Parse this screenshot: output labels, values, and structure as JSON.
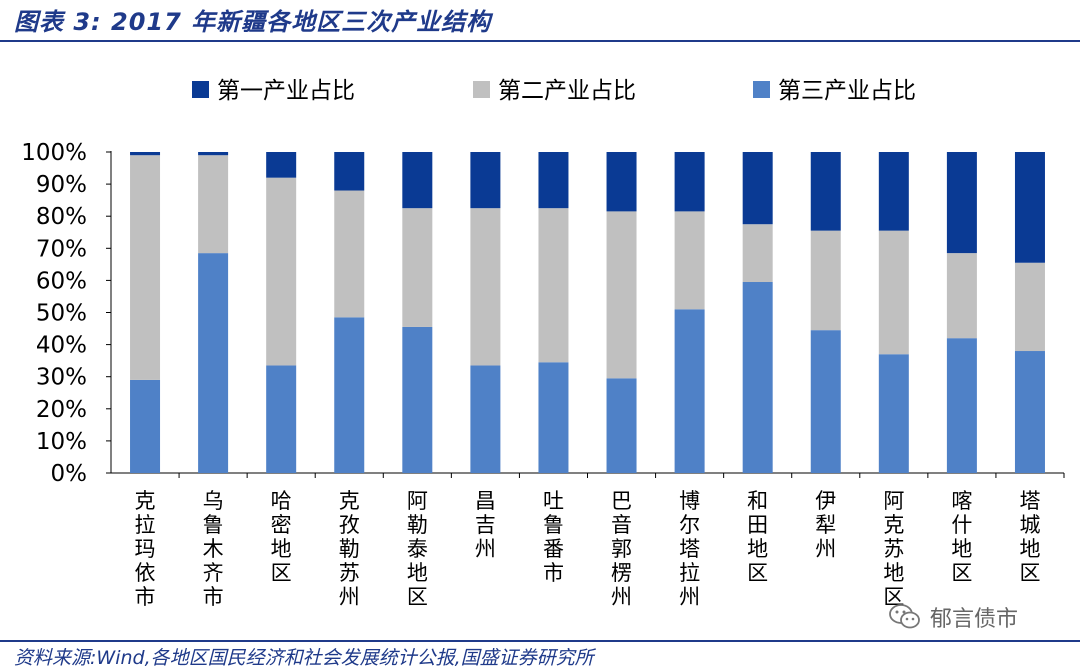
{
  "title": "图表 3:  2017 年新疆各地区三次产业结构",
  "source": "资料来源:Wind,各地区国民经济和社会发展统计公报,国盛证券研究所",
  "watermark": {
    "text": "郁言债市",
    "icon": "wechat-icon"
  },
  "colors": {
    "first": "#0a3a94",
    "second": "#c0c0c0",
    "third": "#4f81c7",
    "title": "#1f3a8a"
  },
  "chart_data": {
    "type": "bar",
    "stacked": true,
    "title": "2017 年新疆各地区三次产业结构",
    "categories": [
      "克拉玛依市",
      "乌鲁木齐市",
      "哈密地区",
      "克孜勒苏州",
      "阿勒泰地区",
      "昌吉州",
      "吐鲁番市",
      "巴音郭楞州",
      "博尔塔拉州",
      "和田地区",
      "伊犁州",
      "阿克苏地区",
      "喀什地区",
      "塔城地区"
    ],
    "series": [
      {
        "name": "第三产业占比",
        "values": [
          29,
          68.5,
          33.5,
          48.5,
          45.5,
          33.5,
          34.5,
          29.5,
          51,
          59.5,
          44.5,
          37,
          42,
          38
        ]
      },
      {
        "name": "第二产业占比",
        "values": [
          70,
          30.5,
          58.5,
          39.5,
          37,
          49,
          48,
          52,
          30.5,
          18,
          31,
          38.5,
          26.5,
          27.5
        ]
      },
      {
        "name": "第一产业占比",
        "values": [
          1,
          1,
          8,
          12,
          17.5,
          17.5,
          17.5,
          18.5,
          18.5,
          22.5,
          24.5,
          24.5,
          31.5,
          34.5
        ]
      }
    ],
    "legend": [
      "第一产业占比",
      "第二产业占比",
      "第三产业占比"
    ],
    "yticks": [
      "0%",
      "10%",
      "20%",
      "30%",
      "40%",
      "50%",
      "60%",
      "70%",
      "80%",
      "90%",
      "100%"
    ],
    "ylim": [
      0,
      100
    ],
    "xlabel": "",
    "ylabel": ""
  }
}
